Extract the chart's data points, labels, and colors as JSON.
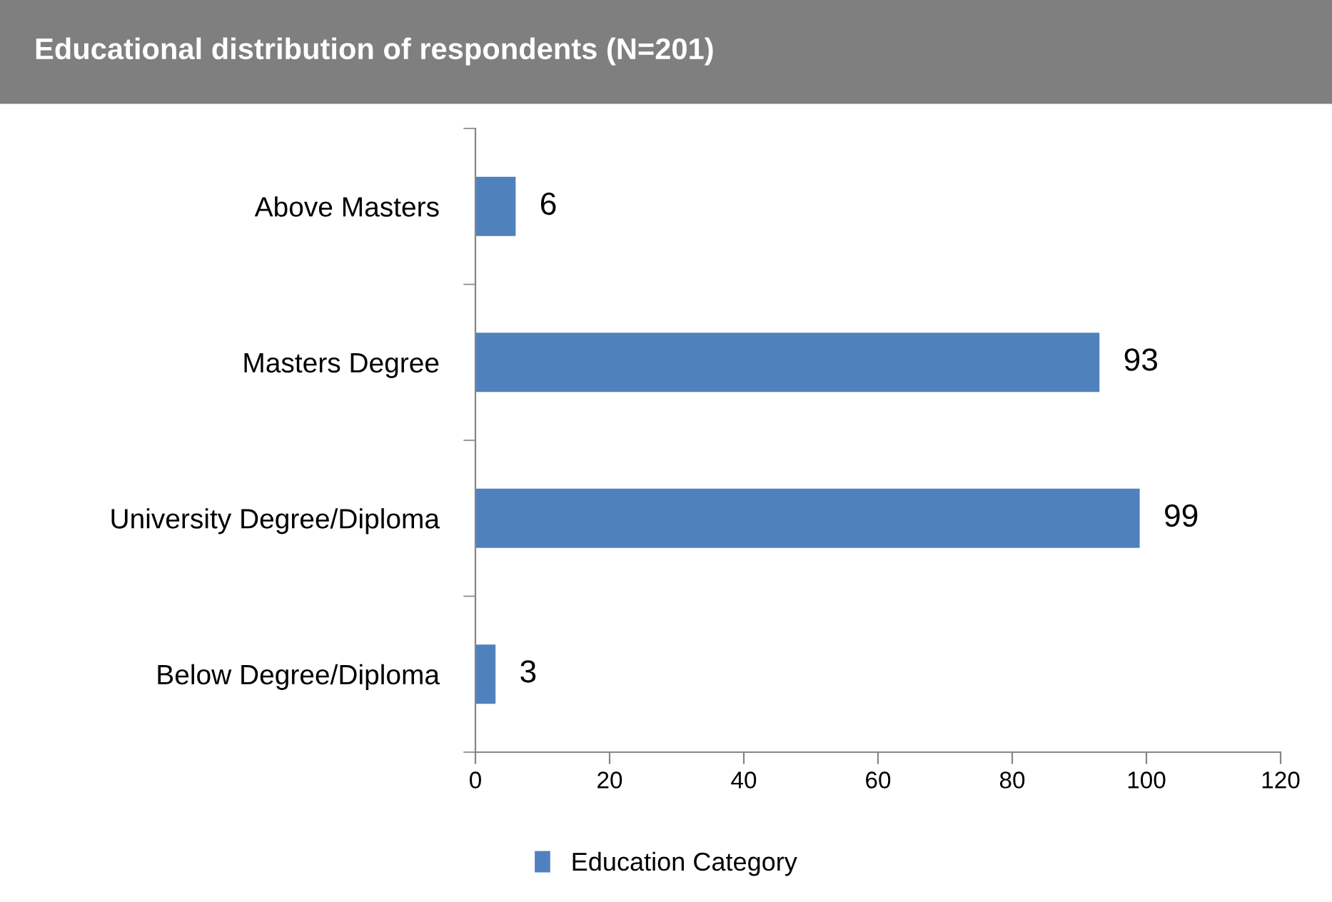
{
  "chart_data": {
    "type": "bar",
    "orientation": "horizontal",
    "title": "Educational distribution of respondents (N=201)",
    "categories": [
      "Above Masters",
      "Masters Degree",
      "University Degree/Diploma",
      "Below Degree/Diploma"
    ],
    "series": [
      {
        "name": "Education Category",
        "color": "#4f81bd",
        "values": [
          6,
          93,
          99,
          3
        ]
      }
    ],
    "xlim": [
      0,
      120
    ],
    "xticks": [
      0,
      20,
      40,
      60,
      80,
      100,
      120
    ],
    "data_labels": true,
    "grid": false,
    "legend": "bottom"
  }
}
